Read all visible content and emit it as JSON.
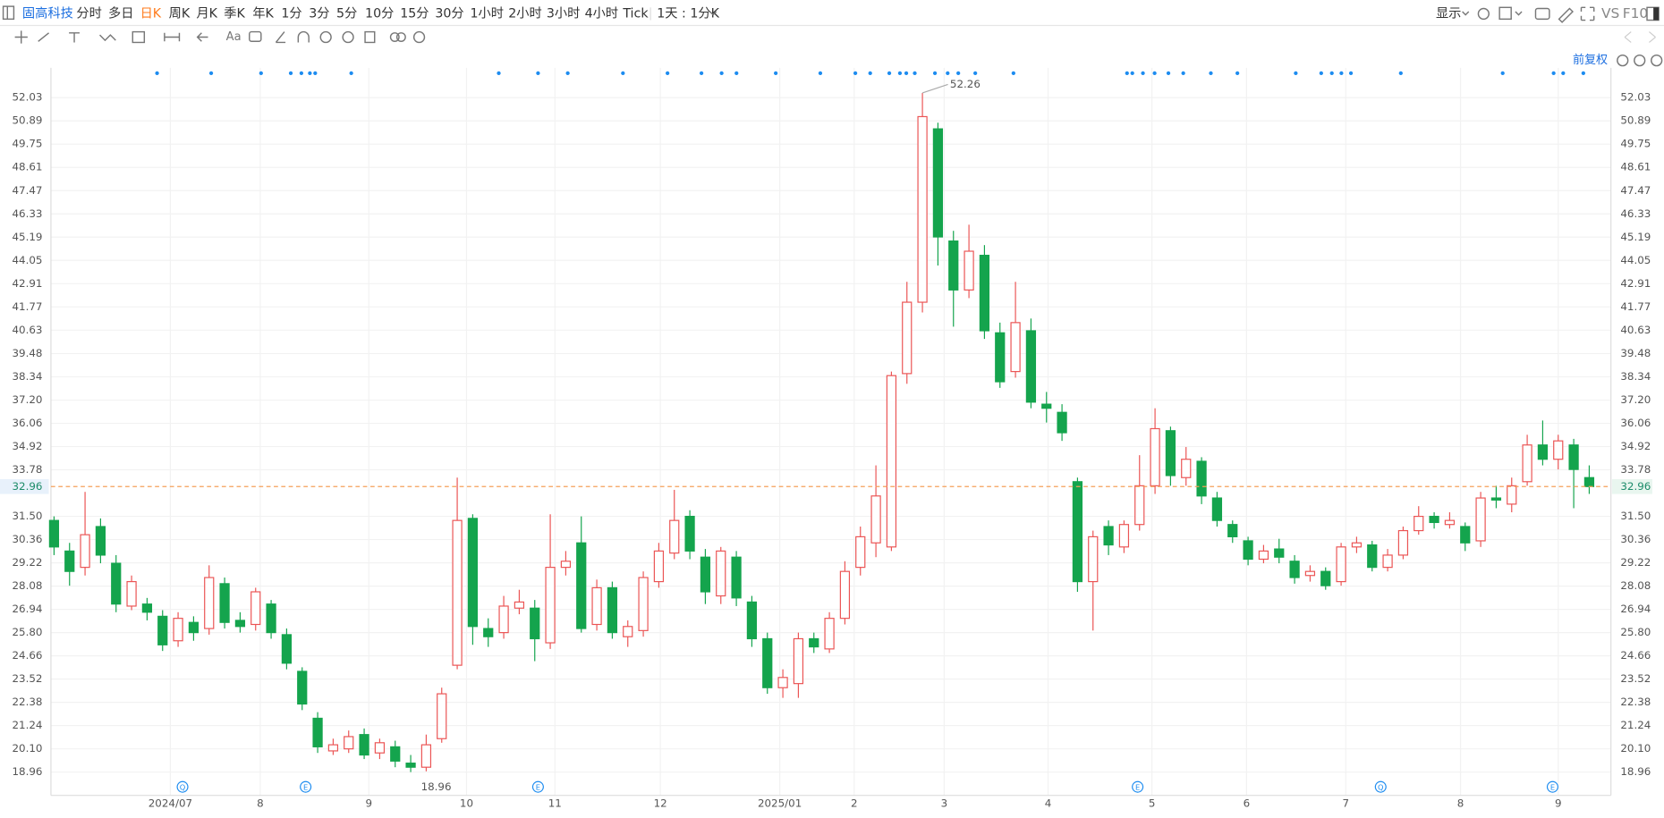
{
  "toolbar": {
    "stock": "固高科技",
    "periods": [
      "分时",
      "多日",
      "日K",
      "周K",
      "月K",
      "季K",
      "年K",
      "1分",
      "3分",
      "5分",
      "10分",
      "15分",
      "30分",
      "1小时",
      "2小时",
      "3小时",
      "4小时",
      "Tick",
      "1天 : 1分K"
    ],
    "display": "显示",
    "vs": "VS",
    "f10": "F10",
    "adjust": "前复权"
  },
  "chart_data": {
    "type": "candlestick",
    "xlim": [
      -0.2,
      100.4
    ],
    "xticks": [
      {
        "value": 7.5,
        "label": "2024/07"
      },
      {
        "value": 13.3,
        "label": "8"
      },
      {
        "value": 20.3,
        "label": "9"
      },
      {
        "value": 26.6,
        "label": "10"
      },
      {
        "value": 32.3,
        "label": "11"
      },
      {
        "value": 39.1,
        "label": "12"
      },
      {
        "value": 46.8,
        "label": "2025/01"
      },
      {
        "value": 51.6,
        "label": "2"
      },
      {
        "value": 57.4,
        "label": "3"
      },
      {
        "value": 64.1,
        "label": "4"
      },
      {
        "value": 70.8,
        "label": "5"
      },
      {
        "value": 76.9,
        "label": "6"
      },
      {
        "value": 83.3,
        "label": "7"
      },
      {
        "value": 90.7,
        "label": "8"
      },
      {
        "value": 97,
        "label": "9"
      }
    ],
    "ylim": [
      17.82,
      53.49
    ],
    "yticks": [
      52.03,
      50.89,
      49.75,
      48.61,
      47.47,
      46.33,
      45.19,
      44.05,
      42.91,
      41.77,
      40.63,
      39.48,
      38.34,
      {
        "value": 37.2,
        "label": "37.20"
      },
      36.06,
      34.92,
      33.78,
      {
        "value": 31.5,
        "label": "31.50"
      },
      30.36,
      29.22,
      28.08,
      26.94,
      {
        "value": 25.8,
        "label": "25.80"
      },
      24.66,
      23.52,
      22.38,
      21.24,
      {
        "value": 20.1,
        "label": "20.10"
      },
      18.96
    ],
    "grid": true,
    "up_color": "#eb5454",
    "down_color": "#14a44d",
    "series": {
      "open": [
        31.3,
        29.8,
        29.0,
        31.0,
        29.2,
        27.1,
        27.2,
        26.6,
        25.4,
        26.3,
        26.0,
        28.2,
        26.4,
        26.2,
        27.2,
        25.7,
        23.9,
        21.6,
        20.0,
        20.1,
        20.8,
        19.9,
        20.2,
        19.4,
        19.2,
        20.6,
        24.2,
        31.4,
        26.0,
        25.8,
        27.0,
        27.0,
        25.3,
        29.0,
        30.2,
        26.2,
        28.0,
        25.6,
        25.9,
        28.3,
        29.7,
        31.5,
        29.5,
        27.6,
        29.5,
        27.3,
        25.5,
        23.1,
        23.3,
        25.5,
        25.0,
        26.5,
        29.0,
        30.2,
        30.0,
        38.5,
        42.0,
        50.5,
        45.0,
        42.6,
        44.3,
        40.5,
        38.6,
        40.6,
        37.0,
        36.6,
        33.2,
        28.3,
        31.0,
        30.0,
        31.1,
        33.0,
        35.7,
        33.4,
        34.2,
        32.4,
        31.1,
        30.3,
        29.4,
        29.9,
        29.3,
        28.6,
        28.8,
        28.3,
        30.0,
        30.1,
        29.0,
        29.6,
        30.8,
        31.5,
        31.1,
        31.0,
        30.3,
        32.4,
        32.1,
        33.2,
        35.0,
        34.3,
        35.0,
        33.4
      ],
      "high": [
        31.5,
        30.2,
        32.7,
        31.4,
        29.6,
        28.6,
        27.5,
        26.9,
        26.8,
        26.6,
        29.1,
        28.5,
        26.8,
        28.0,
        27.4,
        26.0,
        24.1,
        21.9,
        20.6,
        21.0,
        21.1,
        20.6,
        20.5,
        19.8,
        20.8,
        23.1,
        33.4,
        31.6,
        26.5,
        27.6,
        27.9,
        27.4,
        31.6,
        29.8,
        31.5,
        28.4,
        28.3,
        26.4,
        28.8,
        30.2,
        32.8,
        31.8,
        29.9,
        30.0,
        29.8,
        27.6,
        25.8,
        24.0,
        25.8,
        25.8,
        26.8,
        29.3,
        31.0,
        34.0,
        38.6,
        43.0,
        52.26,
        50.8,
        45.5,
        45.8,
        44.8,
        41.0,
        43.0,
        41.2,
        37.6,
        37.0,
        33.4,
        30.8,
        31.3,
        31.3,
        34.5,
        36.8,
        35.9,
        34.9,
        34.4,
        32.7,
        31.3,
        30.5,
        30.1,
        30.4,
        29.6,
        29.1,
        29.0,
        30.2,
        30.5,
        30.3,
        29.9,
        31.0,
        32.0,
        31.7,
        31.7,
        31.2,
        32.7,
        33.0,
        33.4,
        35.5,
        36.2,
        35.5,
        35.3,
        34.0
      ],
      "low": [
        29.6,
        28.1,
        28.6,
        29.2,
        26.8,
        26.9,
        26.4,
        24.9,
        25.1,
        25.4,
        25.7,
        26.0,
        25.8,
        25.9,
        25.5,
        24.0,
        22.0,
        19.9,
        19.8,
        19.9,
        19.6,
        19.6,
        19.2,
        18.96,
        19.0,
        20.4,
        24.0,
        25.2,
        25.1,
        25.5,
        26.7,
        24.4,
        25.0,
        28.6,
        25.8,
        25.9,
        25.5,
        25.1,
        25.6,
        28.0,
        29.4,
        29.4,
        27.2,
        27.2,
        27.1,
        25.1,
        22.8,
        22.6,
        22.6,
        24.8,
        24.8,
        26.2,
        28.6,
        29.5,
        29.8,
        38.0,
        41.5,
        43.8,
        40.8,
        42.2,
        40.2,
        37.8,
        38.3,
        36.8,
        36.1,
        35.2,
        27.8,
        25.9,
        29.6,
        29.7,
        30.8,
        32.6,
        33.0,
        33.0,
        32.1,
        31.0,
        30.2,
        29.1,
        29.2,
        29.2,
        28.2,
        28.3,
        27.9,
        28.1,
        29.7,
        28.8,
        28.8,
        29.4,
        30.6,
        30.9,
        30.9,
        29.8,
        30.0,
        31.9,
        31.7,
        33.0,
        34.0,
        33.8,
        31.9,
        32.6
      ],
      "close": [
        30.0,
        28.8,
        30.6,
        29.6,
        27.2,
        28.3,
        26.8,
        25.2,
        26.5,
        25.8,
        28.5,
        26.3,
        26.1,
        27.8,
        25.8,
        24.3,
        22.3,
        20.2,
        20.3,
        20.7,
        19.8,
        20.4,
        19.5,
        19.2,
        20.3,
        22.8,
        31.3,
        26.1,
        25.6,
        27.1,
        27.3,
        25.5,
        29.0,
        29.3,
        26.0,
        28.0,
        25.8,
        26.1,
        28.5,
        29.8,
        31.3,
        29.8,
        27.8,
        29.8,
        27.5,
        25.5,
        23.1,
        23.6,
        25.5,
        25.1,
        26.5,
        28.8,
        30.5,
        32.5,
        38.4,
        42.0,
        51.1,
        45.2,
        42.6,
        44.5,
        40.6,
        38.1,
        41.0,
        37.1,
        36.8,
        35.6,
        28.3,
        30.5,
        30.1,
        31.1,
        33.0,
        35.8,
        33.5,
        34.3,
        32.5,
        31.3,
        30.5,
        29.4,
        29.8,
        29.5,
        28.5,
        28.8,
        28.1,
        30.0,
        30.2,
        29.0,
        29.6,
        30.8,
        31.5,
        31.2,
        31.3,
        30.2,
        32.4,
        32.3,
        33.0,
        35.0,
        34.3,
        35.2,
        33.8,
        32.96
      ]
    },
    "last_price": 32.96,
    "max_label": 52.26,
    "min_label": 18.96,
    "event_markers": [
      "Q",
      "E",
      "E",
      "E",
      "Q",
      "E"
    ]
  }
}
